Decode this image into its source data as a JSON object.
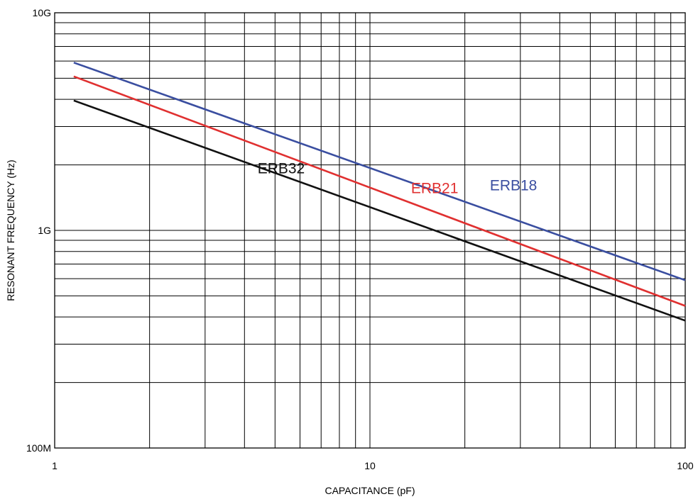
{
  "chart_data": {
    "type": "line",
    "title": "",
    "xlabel": "CAPACITANCE (pF)",
    "ylabel": "RESONANT FREQUENCY (Hz)",
    "x_scale": "log",
    "y_scale": "log",
    "xlim": [
      1,
      100
    ],
    "ylim": [
      100000000,
      10000000000
    ],
    "grid": true,
    "x_ticks": [
      {
        "value": 1,
        "label": "1"
      },
      {
        "value": 10,
        "label": "10"
      },
      {
        "value": 100,
        "label": "100"
      }
    ],
    "y_ticks": [
      {
        "value": 100000000,
        "label": "100M"
      },
      {
        "value": 1000000000,
        "label": "1G"
      },
      {
        "value": 10000000000,
        "label": "10G"
      }
    ],
    "series": [
      {
        "name": "ERB18",
        "color": "#3a4ea0",
        "x": [
          1.15,
          100
        ],
        "y": [
          5900000000,
          590000000
        ],
        "label_at": {
          "x": 24,
          "y": 1530000000
        }
      },
      {
        "name": "ERB21",
        "color": "#e03030",
        "x": [
          1.15,
          100
        ],
        "y": [
          5100000000,
          450000000
        ],
        "label_at": {
          "x": 13.5,
          "y": 1480000000
        }
      },
      {
        "name": "ERB32",
        "color": "#111111",
        "x": [
          1.15,
          100
        ],
        "y": [
          3950000000,
          385000000
        ],
        "label_at": {
          "x": 4.4,
          "y": 1830000000
        }
      }
    ]
  }
}
